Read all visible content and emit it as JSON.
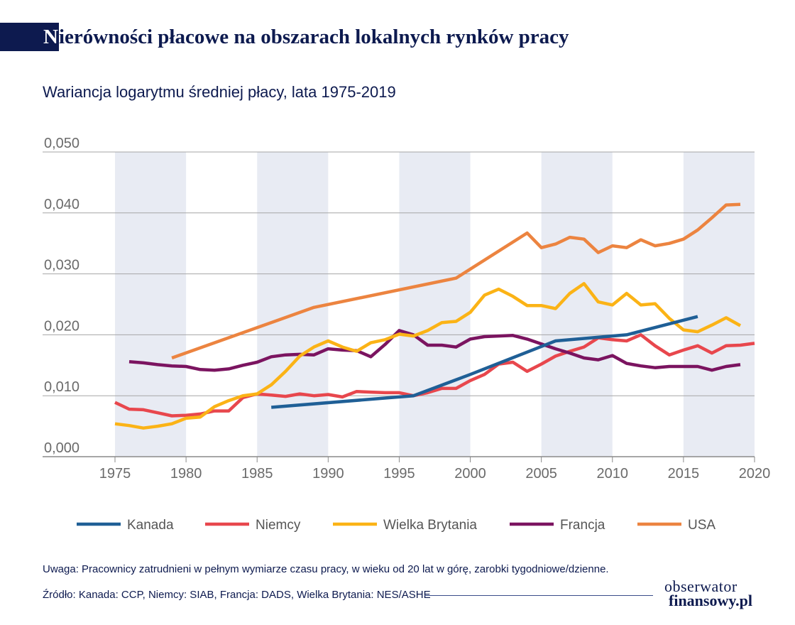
{
  "header": {
    "title_first": "N",
    "title_rest": "ierówności płacowe na obszarach lokalnych rynków pracy",
    "subtitle": "Wariancja logarytmu średniej płacy, lata 1975-2019"
  },
  "footer": {
    "note": "Uwaga: Pracownicy zatrudnieni w pełnym wymiarze czasu pracy, w wieku od 20 lat w górę, zarobki tygodniowe/dzienne.",
    "source": "Źródło: Kanada: CCP, Niemcy: SIAB, Francja: DADS, Wielka Brytania: NES/ASHE",
    "logo_line1": "obserwator",
    "logo_line2": "finansowy.pl"
  },
  "chart_data": {
    "type": "line",
    "title": "",
    "xlabel": "",
    "ylabel": "",
    "xlim": [
      1975,
      2020
    ],
    "ylim": [
      0,
      0.05
    ],
    "x_ticks": [
      1975,
      1980,
      1985,
      1990,
      1995,
      2000,
      2005,
      2010,
      2015,
      2020
    ],
    "x_tick_labels": [
      "1975",
      "1980",
      "1985",
      "1990",
      "1995",
      "2000",
      "2005",
      "2010",
      "2015",
      "2020"
    ],
    "y_ticks": [
      0,
      0.01,
      0.02,
      0.03,
      0.04,
      0.05
    ],
    "y_tick_labels": [
      "0,000",
      "0,010",
      "0,020",
      "0,030",
      "0,040",
      "0,050"
    ],
    "shaded_bands": [
      [
        1975,
        1980
      ],
      [
        1985,
        1990
      ],
      [
        1995,
        2000
      ],
      [
        2005,
        2010
      ],
      [
        2015,
        2020
      ]
    ],
    "band_color": "#e8ebf3",
    "grid": "horizontal",
    "legend_position": "bottom",
    "series": [
      {
        "name": "Kanada",
        "color": "#1f5f96",
        "points": [
          [
            1986,
            0.0081
          ],
          [
            1996,
            0.01
          ],
          [
            2000,
            0.0135
          ],
          [
            2006,
            0.019
          ],
          [
            2011,
            0.02
          ],
          [
            2016,
            0.023
          ]
        ]
      },
      {
        "name": "Niemcy",
        "color": "#e8474d",
        "points": [
          [
            1975,
            0.0089
          ],
          [
            1976,
            0.0078
          ],
          [
            1977,
            0.0077
          ],
          [
            1978,
            0.0072
          ],
          [
            1979,
            0.0067
          ],
          [
            1980,
            0.0068
          ],
          [
            1981,
            0.007
          ],
          [
            1982,
            0.0075
          ],
          [
            1983,
            0.0075
          ],
          [
            1984,
            0.0097
          ],
          [
            1985,
            0.0103
          ],
          [
            1986,
            0.0101
          ],
          [
            1987,
            0.0099
          ],
          [
            1988,
            0.0103
          ],
          [
            1989,
            0.01
          ],
          [
            1990,
            0.0102
          ],
          [
            1991,
            0.0098
          ],
          [
            1992,
            0.0107
          ],
          [
            1993,
            0.0106
          ],
          [
            1994,
            0.0105
          ],
          [
            1995,
            0.0105
          ],
          [
            1996,
            0.01
          ],
          [
            1997,
            0.0105
          ],
          [
            1998,
            0.0112
          ],
          [
            1999,
            0.0112
          ],
          [
            2000,
            0.0125
          ],
          [
            2001,
            0.0135
          ],
          [
            2002,
            0.0152
          ],
          [
            2003,
            0.0155
          ],
          [
            2004,
            0.014
          ],
          [
            2005,
            0.0152
          ],
          [
            2006,
            0.0165
          ],
          [
            2007,
            0.0173
          ],
          [
            2008,
            0.018
          ],
          [
            2009,
            0.0195
          ],
          [
            2010,
            0.0192
          ],
          [
            2011,
            0.019
          ],
          [
            2012,
            0.02
          ],
          [
            2013,
            0.0182
          ],
          [
            2014,
            0.0167
          ],
          [
            2015,
            0.0175
          ],
          [
            2016,
            0.0182
          ],
          [
            2017,
            0.017
          ],
          [
            2018,
            0.0182
          ],
          [
            2019,
            0.0183
          ],
          [
            2020,
            0.0186
          ]
        ]
      },
      {
        "name": "Wielka Brytania",
        "color": "#fbb316",
        "points": [
          [
            1975,
            0.0054
          ],
          [
            1976,
            0.0051
          ],
          [
            1977,
            0.0047
          ],
          [
            1978,
            0.005
          ],
          [
            1979,
            0.0054
          ],
          [
            1980,
            0.0063
          ],
          [
            1981,
            0.0065
          ],
          [
            1982,
            0.0082
          ],
          [
            1983,
            0.0092
          ],
          [
            1984,
            0.01
          ],
          [
            1985,
            0.0103
          ],
          [
            1986,
            0.0118
          ],
          [
            1987,
            0.014
          ],
          [
            1988,
            0.0165
          ],
          [
            1989,
            0.018
          ],
          [
            1990,
            0.019
          ],
          [
            1991,
            0.018
          ],
          [
            1992,
            0.0173
          ],
          [
            1993,
            0.0187
          ],
          [
            1994,
            0.0192
          ],
          [
            1995,
            0.0201
          ],
          [
            1996,
            0.0198
          ],
          [
            1997,
            0.0207
          ],
          [
            1998,
            0.022
          ],
          [
            1999,
            0.0222
          ],
          [
            2000,
            0.0237
          ],
          [
            2001,
            0.0265
          ],
          [
            2002,
            0.0275
          ],
          [
            2003,
            0.0263
          ],
          [
            2004,
            0.0248
          ],
          [
            2005,
            0.0248
          ],
          [
            2006,
            0.0243
          ],
          [
            2007,
            0.0268
          ],
          [
            2008,
            0.0284
          ],
          [
            2009,
            0.0254
          ],
          [
            2010,
            0.0249
          ],
          [
            2011,
            0.0268
          ],
          [
            2012,
            0.0249
          ],
          [
            2013,
            0.0251
          ],
          [
            2014,
            0.0227
          ],
          [
            2015,
            0.0208
          ],
          [
            2016,
            0.0205
          ],
          [
            2017,
            0.0216
          ],
          [
            2018,
            0.0228
          ],
          [
            2019,
            0.0215
          ]
        ]
      },
      {
        "name": "Francja",
        "color": "#7b1460",
        "points": [
          [
            1976,
            0.0156
          ],
          [
            1977,
            0.0154
          ],
          [
            1978,
            0.0151
          ],
          [
            1979,
            0.0149
          ],
          [
            1980,
            0.0148
          ],
          [
            1981,
            0.0143
          ],
          [
            1982,
            0.0142
          ],
          [
            1983,
            0.0144
          ],
          [
            1984,
            0.015
          ],
          [
            1985,
            0.0155
          ],
          [
            1986,
            0.0164
          ],
          [
            1987,
            0.0167
          ],
          [
            1988,
            0.0168
          ],
          [
            1989,
            0.0167
          ],
          [
            1990,
            0.0177
          ],
          [
            1991,
            0.0175
          ],
          [
            1992,
            0.0174
          ],
          [
            1993,
            0.0164
          ],
          [
            1994,
            0.0184
          ],
          [
            1995,
            0.0207
          ],
          [
            1996,
            0.02
          ],
          [
            1997,
            0.0183
          ],
          [
            1998,
            0.0183
          ],
          [
            1999,
            0.018
          ],
          [
            2000,
            0.0193
          ],
          [
            2001,
            0.0197
          ],
          [
            2002,
            0.0198
          ],
          [
            2003,
            0.0199
          ],
          [
            2004,
            0.0193
          ],
          [
            2005,
            0.0185
          ],
          [
            2006,
            0.0177
          ],
          [
            2007,
            0.017
          ],
          [
            2008,
            0.0162
          ],
          [
            2009,
            0.0159
          ],
          [
            2010,
            0.0166
          ],
          [
            2011,
            0.0153
          ],
          [
            2012,
            0.0149
          ],
          [
            2013,
            0.0146
          ],
          [
            2014,
            0.0148
          ],
          [
            2015,
            0.0148
          ],
          [
            2016,
            0.0148
          ],
          [
            2017,
            0.0142
          ],
          [
            2018,
            0.0148
          ],
          [
            2019,
            0.0151
          ]
        ]
      },
      {
        "name": "USA",
        "color": "#ec8440",
        "points": [
          [
            1979,
            0.0162
          ],
          [
            1989,
            0.0245
          ],
          [
            1999,
            0.0293
          ],
          [
            2004,
            0.0367
          ],
          [
            2005,
            0.0343
          ],
          [
            2006,
            0.0349
          ],
          [
            2007,
            0.036
          ],
          [
            2008,
            0.0357
          ],
          [
            2009,
            0.0335
          ],
          [
            2010,
            0.0346
          ],
          [
            2011,
            0.0343
          ],
          [
            2012,
            0.0356
          ],
          [
            2013,
            0.0346
          ],
          [
            2014,
            0.035
          ],
          [
            2015,
            0.0357
          ],
          [
            2016,
            0.0372
          ],
          [
            2017,
            0.0392
          ],
          [
            2018,
            0.0413
          ],
          [
            2019,
            0.0414
          ]
        ]
      }
    ]
  }
}
